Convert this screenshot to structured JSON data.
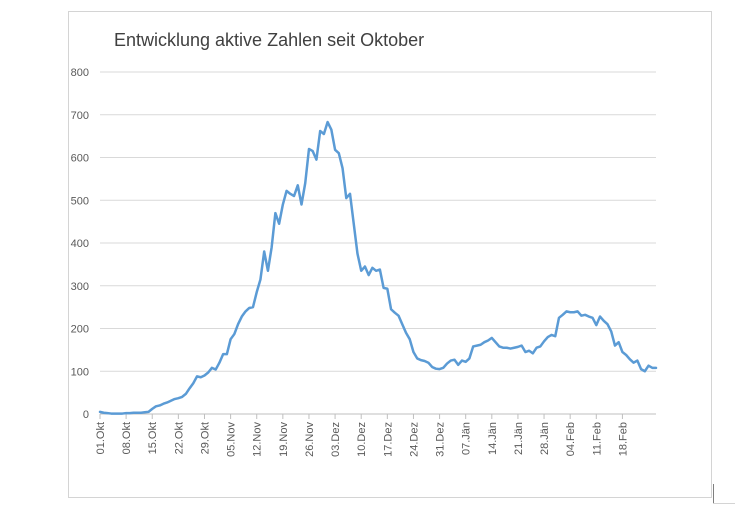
{
  "chart_data": {
    "type": "line",
    "title": "Entwicklung aktive Zahlen seit Oktober",
    "xlabel": "",
    "ylabel": "",
    "ylim": [
      0,
      800
    ],
    "yticks": [
      0,
      100,
      200,
      300,
      400,
      500,
      600,
      700,
      800
    ],
    "grid": true,
    "legend": "none",
    "line_color": "#5b9bd5",
    "tick_labels": [
      "01.Okt",
      "08.Okt",
      "15.Okt",
      "22.Okt",
      "29.Okt",
      "05.Nov",
      "12.Nov",
      "19.Nov",
      "26.Nov",
      "03.Dez",
      "10.Dez",
      "17.Dez",
      "24.Dez",
      "31.Dez",
      "07.Jän",
      "14.Jän",
      "21.Jän",
      "28.Jän",
      "04.Feb",
      "11.Feb",
      "18.Feb"
    ],
    "tick_day_index": [
      0,
      7,
      14,
      21,
      28,
      35,
      42,
      49,
      56,
      63,
      70,
      77,
      84,
      91,
      98,
      105,
      112,
      119,
      126,
      133,
      140
    ],
    "x_start": "01.Okt",
    "series": [
      {
        "values": [
          5,
          3,
          2,
          1,
          1,
          1,
          1,
          2,
          2,
          3,
          3,
          3,
          4,
          5,
          12,
          18,
          20,
          24,
          27,
          31,
          35,
          37,
          40,
          47,
          60,
          72,
          88,
          86,
          90,
          97,
          108,
          104,
          120,
          140,
          140,
          175,
          187,
          210,
          228,
          240,
          248,
          250,
          285,
          315,
          380,
          335,
          390,
          470,
          445,
          490,
          522,
          515,
          510,
          535,
          490,
          540,
          620,
          615,
          595,
          662,
          655,
          683,
          665,
          618,
          610,
          575,
          505,
          515,
          445,
          375,
          335,
          345,
          325,
          342,
          335,
          338,
          295,
          293,
          245,
          237,
          230,
          210,
          190,
          175,
          145,
          130,
          126,
          124,
          120,
          110,
          106,
          105,
          108,
          118,
          125,
          127,
          115,
          125,
          122,
          130,
          158,
          160,
          162,
          168,
          172,
          178,
          168,
          158,
          155,
          155,
          153,
          155,
          157,
          160,
          145,
          148,
          142,
          155,
          158,
          170,
          180,
          185,
          182,
          225,
          232,
          240,
          238,
          238,
          240,
          230,
          232,
          228,
          225,
          208,
          228,
          218,
          210,
          193,
          160,
          168,
          145,
          138,
          128,
          120,
          125,
          105,
          100,
          113,
          108,
          108
        ]
      }
    ]
  }
}
